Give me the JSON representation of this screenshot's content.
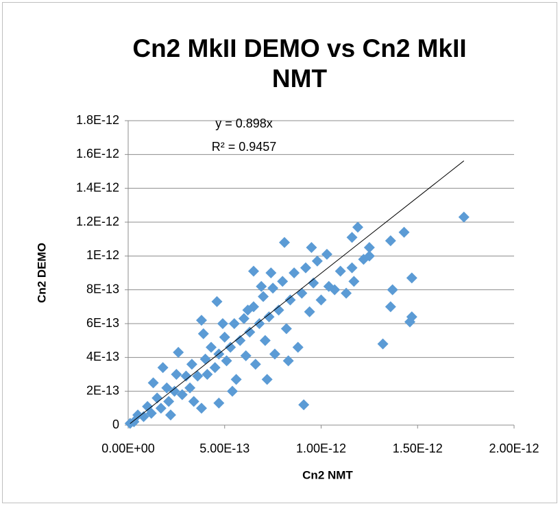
{
  "chart_data": {
    "type": "scatter",
    "title": "Cn2 MkII DEMO vs Cn2 MkII",
    "title_line2": "NMT",
    "x_label": "Cn2 NMT",
    "y_label": "Cn2 DEMO",
    "color": "#5b9bd5",
    "grid": true,
    "x": [
      1e-14,
      3e-14,
      5e-14,
      8e-14,
      1e-13,
      1.2e-13,
      1.5e-13,
      1.7e-13,
      2e-13,
      2.1e-13,
      2.4e-13,
      2.5e-13,
      2.8e-13,
      3e-13,
      3.2e-13,
      3.3e-13,
      3.6e-13,
      3.8e-13,
      4e-13,
      4.1e-13,
      4.3e-13,
      4.5e-13,
      4.7e-13,
      5e-13,
      5.1e-13,
      5.3e-13,
      5.5e-13,
      5.6e-13,
      5.8e-13,
      6e-13,
      6.1e-13,
      6.3e-13,
      6.5e-13,
      6.6e-13,
      6.8e-13,
      7e-13,
      7.1e-13,
      7.3e-13,
      7.5e-13,
      7.6e-13,
      7.8e-13,
      8e-13,
      8.2e-13,
      8.4e-13,
      8.6e-13,
      8.8e-13,
      9e-13,
      9.2e-13,
      9.4e-13,
      9.6e-13,
      9.8e-13,
      1e-12,
      1.04e-12,
      1.07e-12,
      1.1e-12,
      1.16e-12,
      1.8e-13,
      2.6e-13,
      3.4e-13,
      4.6e-13,
      5.4e-13,
      6.2e-13,
      7.2e-13,
      7.4e-13,
      8.3e-13,
      3.9e-13,
      2.2e-13,
      1.3e-13,
      4.9e-13,
      6.9e-13,
      1.74e-12,
      1.43e-12,
      1.36e-12,
      1.47e-12,
      1.37e-12,
      1.36e-12,
      1.47e-12,
      1.46e-12,
      1.32e-12,
      9.1e-13,
      8.1e-13,
      1.19e-12,
      1.25e-12,
      1.16e-12,
      1.25e-12,
      1.22e-12,
      1.17e-12,
      1.13e-12,
      9.5e-13,
      1.03e-12,
      4.7e-13,
      6.5e-13,
      3.8e-13
    ],
    "values": [
      1e-14,
      2e-14,
      6e-14,
      5e-14,
      1.1e-13,
      7e-14,
      1.6e-13,
      1e-13,
      2.2e-13,
      1.4e-13,
      2e-13,
      3e-13,
      1.8e-13,
      2.9e-13,
      2.2e-13,
      3.6e-13,
      2.9e-13,
      1e-13,
      3.9e-13,
      3e-13,
      4.6e-13,
      3.4e-13,
      4.2e-13,
      5.2e-13,
      3.8e-13,
      4.6e-13,
      6e-13,
      2.7e-13,
      5e-13,
      6.3e-13,
      4.1e-13,
      5.5e-13,
      7e-13,
      3.6e-13,
      6e-13,
      7.6e-13,
      5e-13,
      6.4e-13,
      8.1e-13,
      4.2e-13,
      6.8e-13,
      8.5e-13,
      5.7e-13,
      7.4e-13,
      9e-13,
      4.6e-13,
      7.8e-13,
      9.3e-13,
      6.7e-13,
      8.4e-13,
      9.7e-13,
      7.4e-13,
      8.2e-13,
      8e-13,
      9.1e-13,
      9.3e-13,
      3.4e-13,
      4.3e-13,
      1.4e-13,
      7.3e-13,
      2e-13,
      6.8e-13,
      2.7e-13,
      9e-13,
      3.8e-13,
      5.4e-13,
      6e-14,
      2.5e-13,
      6e-13,
      8.2e-13,
      1.23e-12,
      1.14e-12,
      1.09e-12,
      8.7e-13,
      8e-13,
      7e-13,
      6.4e-13,
      6.1e-13,
      4.8e-13,
      1.2e-13,
      1.08e-12,
      1.17e-12,
      1.05e-12,
      1.11e-12,
      1e-12,
      9.8e-13,
      8.5e-13,
      7.8e-13,
      1.05e-12,
      1.01e-12,
      1.3e-13,
      9.1e-13,
      6.2e-13
    ],
    "trendline": {
      "slope": 0.898,
      "label": "y = 0.898x",
      "r2_label": "R² = 0.9457"
    },
    "xlim": [
      0,
      2e-12
    ],
    "ylim": [
      0,
      1.8e-12
    ],
    "xticks": [
      {
        "value": 0,
        "label": "0.00E+00"
      },
      {
        "value": 5e-13,
        "label": "5.00E-13"
      },
      {
        "value": 1e-12,
        "label": "1.00E-12"
      },
      {
        "value": 1.5e-12,
        "label": "1.50E-12"
      },
      {
        "value": 2e-12,
        "label": "2.00E-12"
      }
    ],
    "yticks": [
      0,
      {
        "value": 2e-13,
        "label": "2E-13"
      },
      {
        "value": 4e-13,
        "label": "4E-13"
      },
      {
        "value": 6e-13,
        "label": "6E-13"
      },
      {
        "value": 8e-13,
        "label": "8E-13"
      },
      {
        "value": 1e-12,
        "label": "1E-12"
      },
      {
        "value": 1.2e-12,
        "label": "1.2E-12"
      },
      {
        "value": 1.4e-12,
        "label": "1.4E-12"
      },
      {
        "value": 1.6e-12,
        "label": "1.6E-12"
      },
      {
        "value": 1.8e-12,
        "label": "1.8E-12"
      }
    ]
  }
}
